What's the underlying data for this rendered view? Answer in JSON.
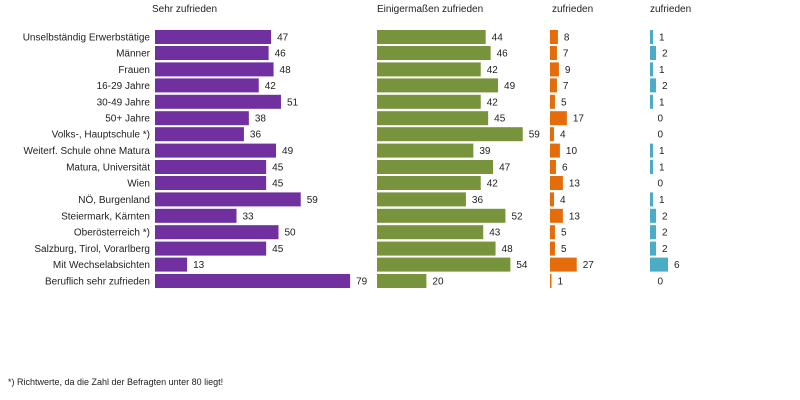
{
  "chart_data": {
    "type": "bar",
    "orientation": "horizontal",
    "categories": [
      "Unselbständig Erwerbstätige",
      "Männer",
      "Frauen",
      "16-29 Jahre",
      "30-49 Jahre",
      "50+ Jahre",
      "Volks-, Hauptschule *)",
      "Weiterf. Schule ohne Matura",
      "Matura, Universität",
      "Wien",
      "NÖ, Burgenland",
      "Steiermark, Kärnten",
      "Oberösterreich *)",
      "Salzburg, Tirol, Vorarlberg",
      "Mit Wechselabsichten",
      "Beruflich sehr zufrieden"
    ],
    "groups": [
      [
        0
      ],
      [
        1,
        2
      ],
      [
        3,
        4,
        5
      ],
      [
        6,
        7,
        8
      ],
      [
        9,
        10,
        11,
        12,
        13
      ],
      [
        14,
        15
      ]
    ],
    "series": [
      {
        "name": "Sehr zufrieden",
        "color": "#7030a0",
        "values": [
          47,
          46,
          48,
          42,
          51,
          38,
          36,
          49,
          45,
          45,
          59,
          33,
          50,
          45,
          13,
          79
        ]
      },
      {
        "name": "Einigermaßen zufrieden",
        "color": "#77933c",
        "values": [
          44,
          46,
          42,
          49,
          42,
          45,
          59,
          39,
          47,
          42,
          36,
          52,
          43,
          48,
          54,
          20
        ]
      },
      {
        "name": "zufrieden",
        "color": "#e46c0a",
        "values": [
          8,
          7,
          9,
          7,
          5,
          17,
          4,
          10,
          6,
          13,
          4,
          13,
          5,
          5,
          27,
          1
        ]
      },
      {
        "name": "zufrieden",
        "color": "#4bacc6",
        "values": [
          1,
          2,
          1,
          2,
          1,
          0,
          0,
          1,
          1,
          0,
          1,
          2,
          2,
          2,
          6,
          0
        ]
      }
    ]
  },
  "footnote": "*) Richtwerte, da die Zahl der Befragten unter 80 liegt!"
}
